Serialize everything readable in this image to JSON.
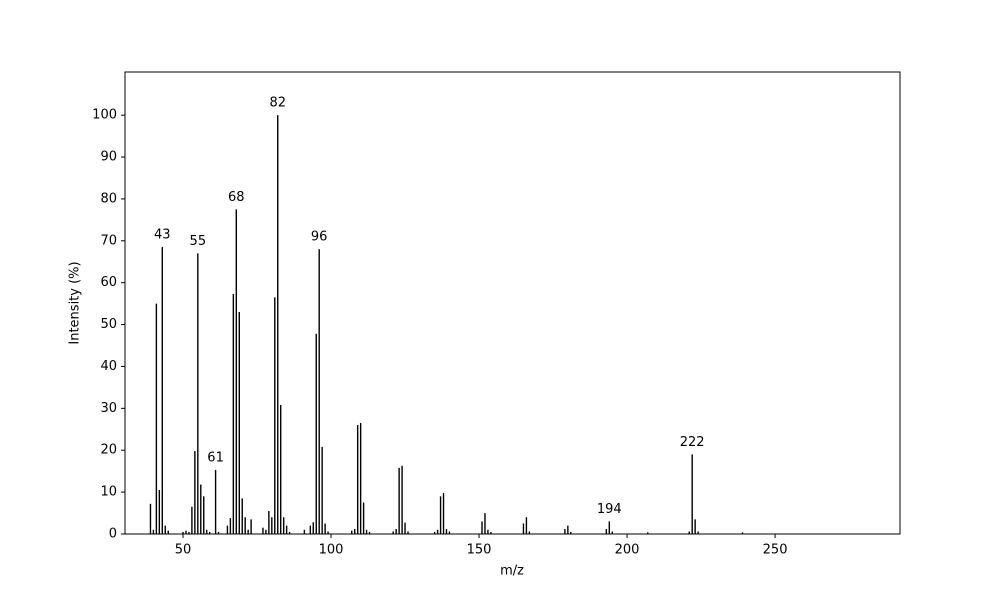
{
  "chart_data": {
    "type": "spectrum",
    "xlabel": "m/z",
    "ylabel": "Intensity (%)",
    "color": "#000000",
    "x": [
      39,
      40,
      41,
      42,
      43,
      44,
      45,
      50,
      51,
      52,
      53,
      54,
      55,
      56,
      57,
      58,
      59,
      61,
      62,
      65,
      66,
      67,
      68,
      69,
      70,
      71,
      72,
      73,
      77,
      78,
      79,
      80,
      81,
      82,
      83,
      84,
      85,
      86,
      91,
      93,
      94,
      95,
      96,
      97,
      98,
      99,
      107,
      108,
      109,
      110,
      111,
      112,
      113,
      121,
      122,
      123,
      124,
      125,
      126,
      135,
      136,
      137,
      138,
      139,
      140,
      151,
      152,
      153,
      154,
      165,
      166,
      167,
      179,
      180,
      181,
      193,
      194,
      195,
      207,
      221,
      222,
      223,
      224,
      239
    ],
    "values": [
      7.2,
      1,
      55,
      10.5,
      68.5,
      2,
      0.8,
      0.5,
      0.8,
      0.5,
      6.5,
      19.8,
      67,
      11.8,
      9,
      1,
      0.5,
      15.3,
      0.5,
      2,
      3.8,
      57.3,
      77.5,
      53,
      8.5,
      4,
      1,
      3.5,
      1.5,
      1,
      5.5,
      4,
      56.5,
      100,
      30.8,
      4,
      2,
      0.5,
      1,
      2,
      2.8,
      47.8,
      68,
      20.8,
      2.5,
      0.6,
      0.8,
      1.2,
      26,
      26.5,
      7.5,
      1,
      0.5,
      0.6,
      1.2,
      15.8,
      16.3,
      2.7,
      0.6,
      0.5,
      1,
      9,
      9.8,
      1.2,
      0.6,
      3,
      5,
      1,
      0.5,
      2.5,
      4,
      0.6,
      1.2,
      2,
      0.5,
      1.2,
      3,
      0.6,
      0.4,
      0.6,
      19,
      3.5,
      0.6,
      0.4
    ],
    "annotations": [
      43,
      55,
      61,
      68,
      82,
      96,
      194,
      222
    ],
    "xlim": [
      30.4,
      292.2
    ],
    "ylim": [
      0,
      110.3
    ],
    "xticks": [
      50,
      100,
      150,
      200,
      250
    ],
    "yticks": [
      0,
      10,
      20,
      30,
      40,
      50,
      60,
      70,
      80,
      90,
      100
    ]
  }
}
